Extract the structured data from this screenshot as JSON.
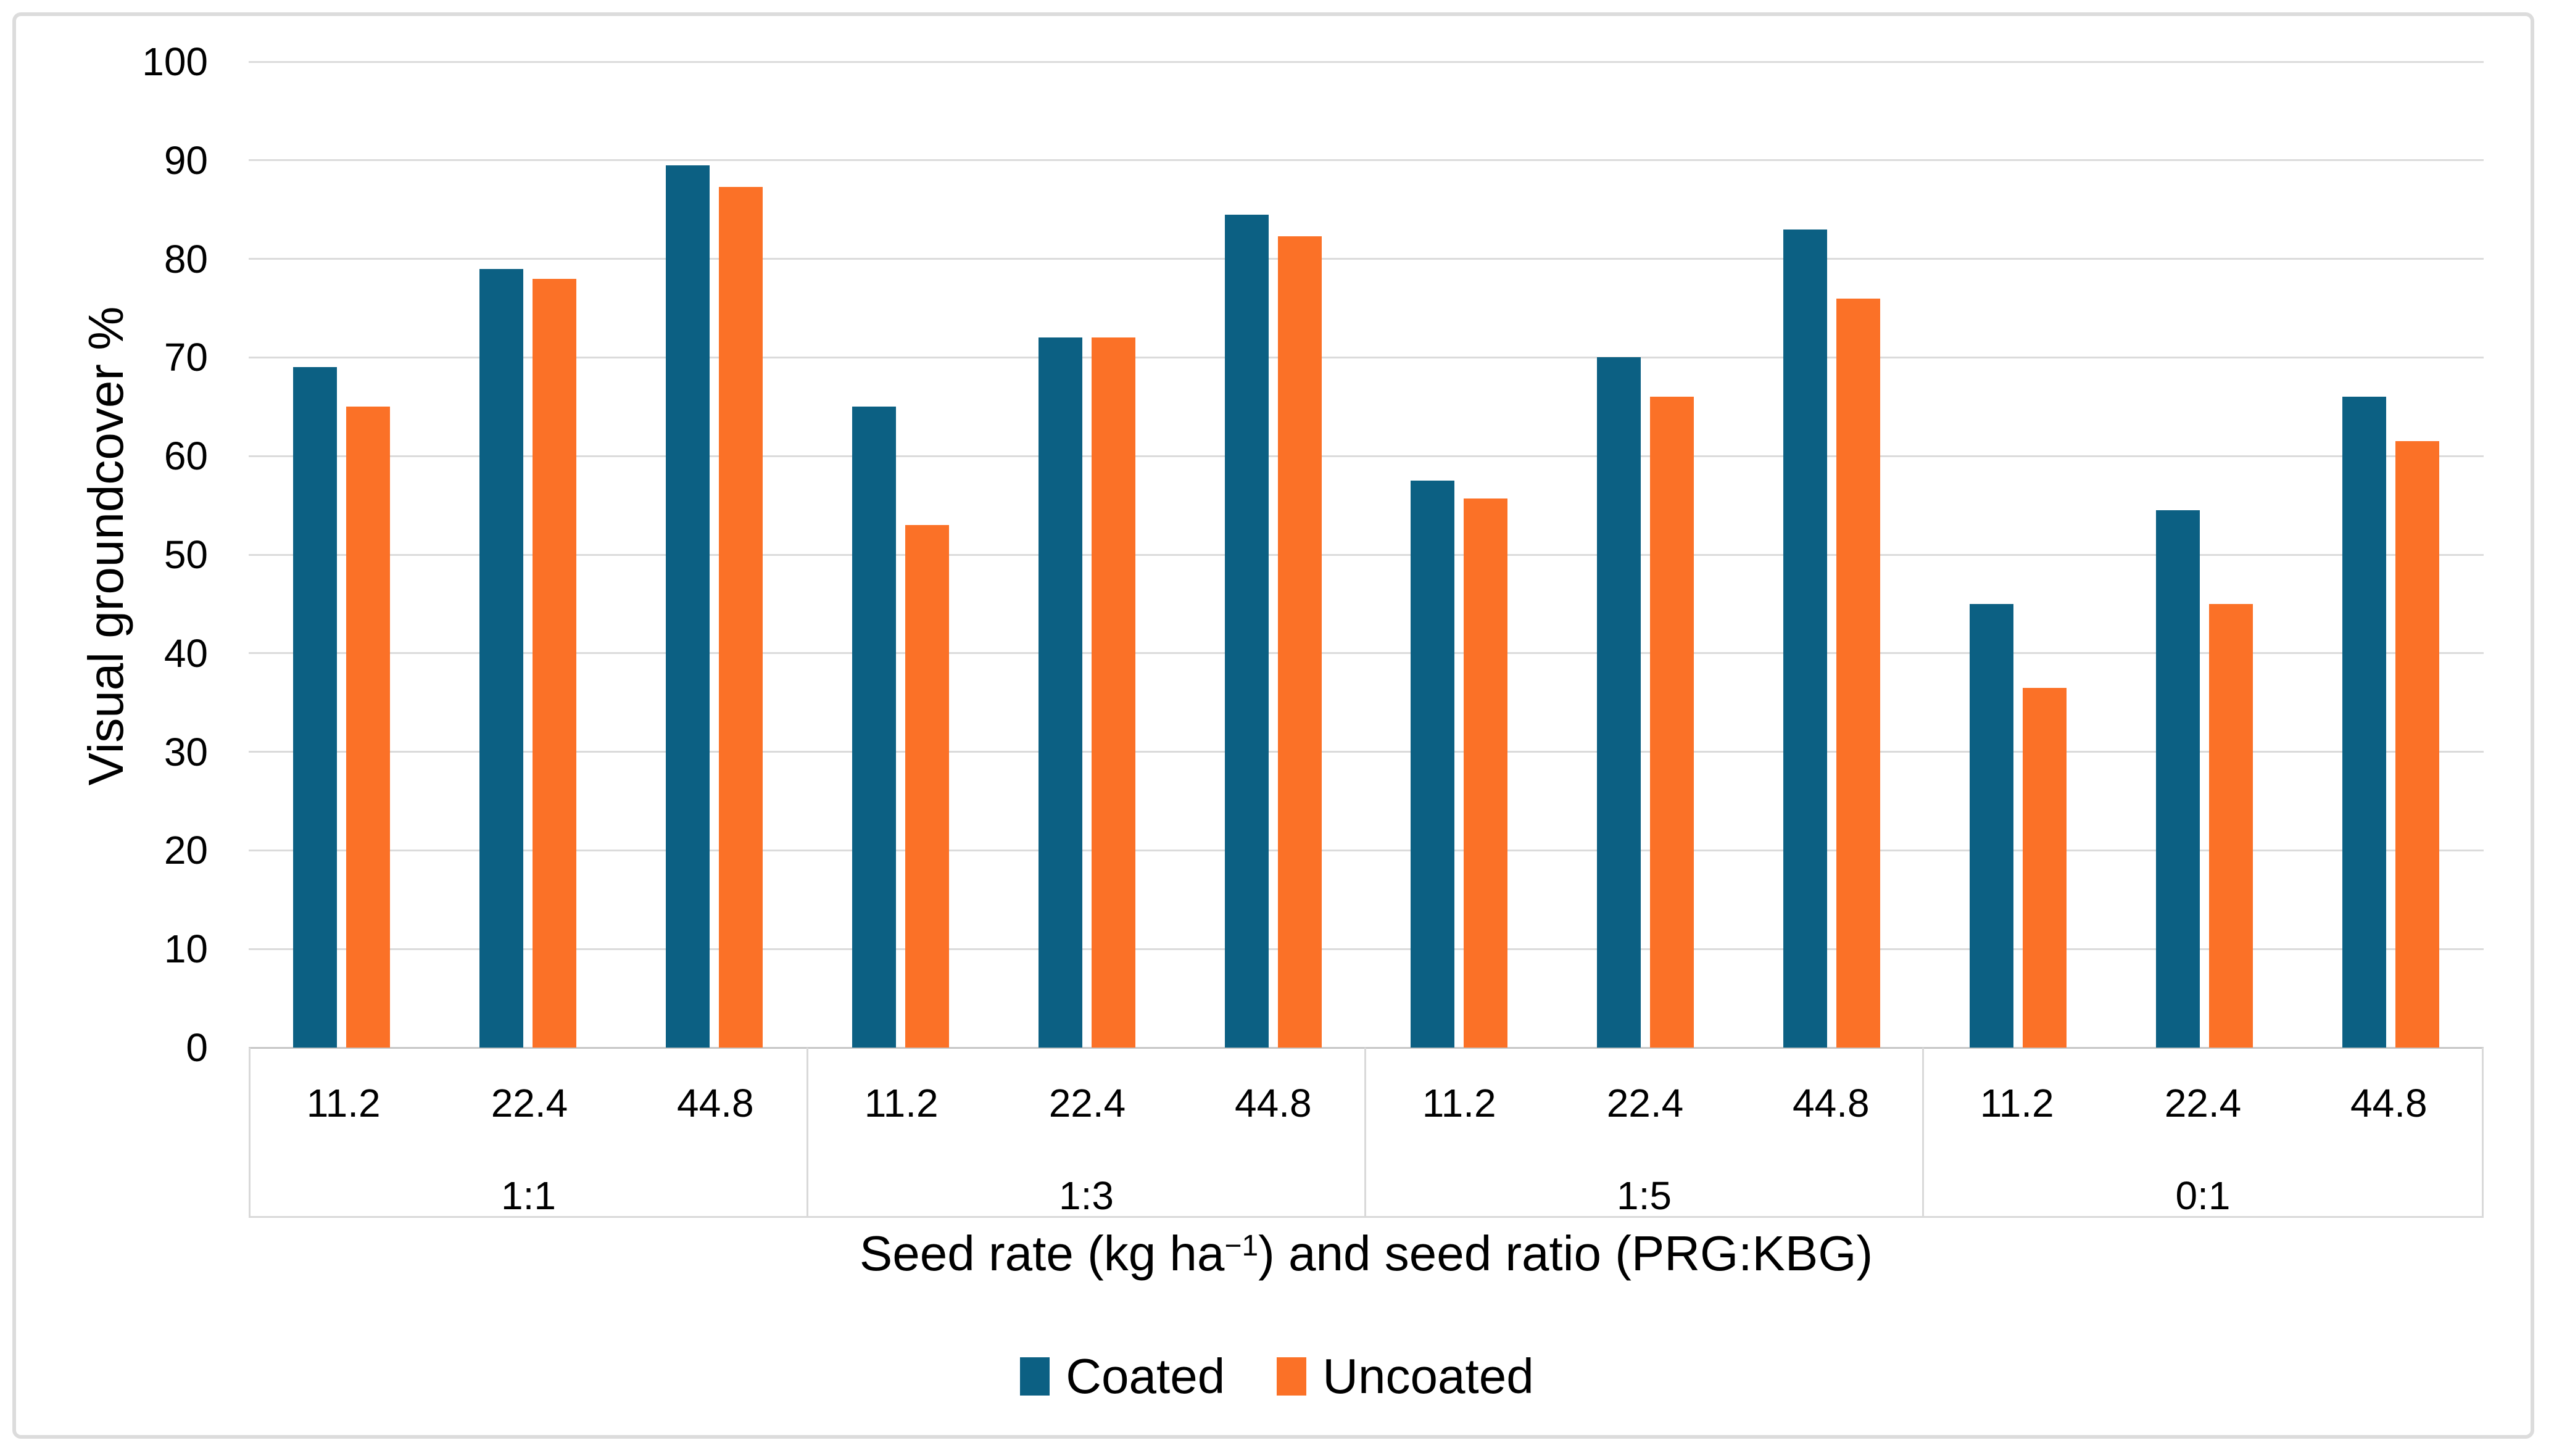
{
  "figure": {
    "background": "#FFFFFF",
    "border_color": "#DCDCDC",
    "gridline_color": "#DBDBDB",
    "axis_line_color": "#C6C6C6",
    "band_line_color": "#D9D9D9"
  },
  "chart_data": {
    "type": "bar",
    "title": "",
    "ylabel": "Visual groundcover %",
    "xlabel": "Seed rate (kg ha−1) and seed ratio (PRG:KBG)",
    "xlabel_parts": {
      "pre": "Seed rate (kg ha",
      "sup": "−1",
      "post": ") and seed ratio (PRG:KBG)"
    },
    "ylim": [
      0,
      100
    ],
    "yticks": [
      0,
      10,
      20,
      30,
      40,
      50,
      60,
      70,
      80,
      90,
      100
    ],
    "grid": "horizontal-major",
    "legend_position": "bottom-center",
    "groups": [
      "1:1",
      "1:3",
      "1:5",
      "0:1"
    ],
    "rates": [
      "11.2",
      "22.4",
      "44.8"
    ],
    "series": [
      {
        "name": "Coated",
        "color": "#0C6083",
        "values": [
          [
            69,
            79,
            89.5
          ],
          [
            65,
            72,
            84.5
          ],
          [
            57.5,
            70,
            83
          ],
          [
            45,
            54.5,
            66
          ]
        ]
      },
      {
        "name": "Uncoated",
        "color": "#FB7127",
        "values": [
          [
            65,
            78,
            87.3
          ],
          [
            53,
            72,
            82.3
          ],
          [
            55.7,
            66,
            76
          ],
          [
            36.5,
            45,
            61.5
          ]
        ]
      }
    ]
  }
}
